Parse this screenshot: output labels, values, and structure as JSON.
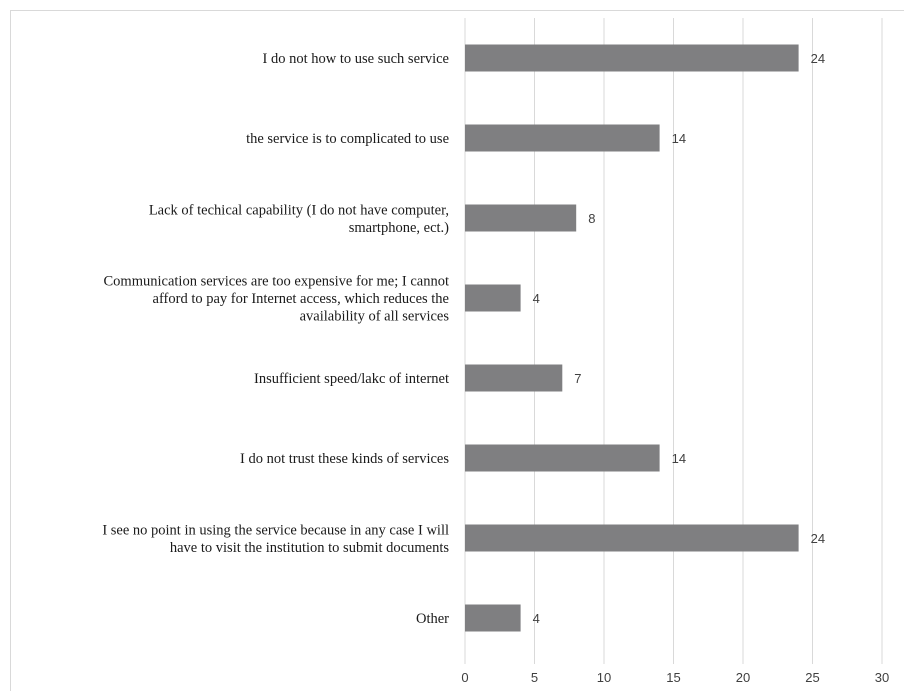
{
  "chart_data": {
    "type": "bar",
    "orientation": "horizontal",
    "categories": [
      [
        "I do not how to use such service"
      ],
      [
        "the service is to complicated to use"
      ],
      [
        "Lack of techical capability (I do not have computer,",
        "smartphone, ect.)"
      ],
      [
        "Communication services are too expensive for me; I cannot",
        "afford to pay for Internet access, which reduces the",
        "availability of all services"
      ],
      [
        "Insufficient speed/lakc of internet"
      ],
      [
        "I do not trust these  kinds of services"
      ],
      [
        "I see no point in using the service because in any case I will",
        "have to visit the institution to submit documents"
      ],
      [
        "Other"
      ]
    ],
    "values": [
      24,
      14,
      8,
      4,
      7,
      14,
      24,
      4
    ],
    "xlim": [
      0,
      30
    ],
    "xticks": [
      0,
      5,
      10,
      15,
      20,
      25,
      30
    ],
    "grid": "vertical",
    "legend": "none",
    "colors": {
      "bar": "#7f7f81",
      "grid": "#d9d9d9"
    },
    "title": "",
    "xlabel": "",
    "ylabel": ""
  }
}
